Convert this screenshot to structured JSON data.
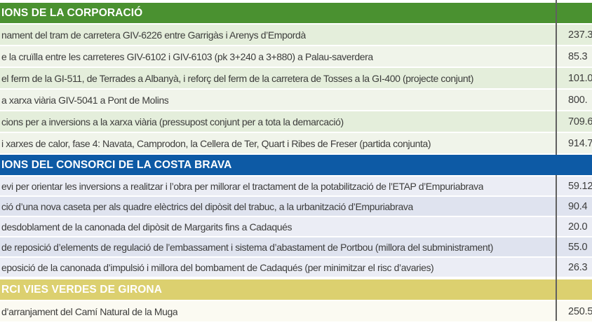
{
  "colors": {
    "green-header": "#4a9130",
    "blue-header": "#0d5aa5",
    "yellow-header": "#dcd06f",
    "row-green-a": "#e4eedb",
    "row-green-b": "#f0f4ea",
    "row-blue-a": "#ebedf5",
    "row-blue-b": "#dfe3ef",
    "row-cream": "#fbfaf2",
    "text": "#3d3d3c",
    "divider": "#606060"
  },
  "sections": [
    {
      "id": "corporacio",
      "header": "IONS DE LA CORPORACIÓ",
      "rows": [
        {
          "label": "nament del tram de carretera GIV-6226 entre Garrigàs i Arenys d’Empordà",
          "value": "237.3"
        },
        {
          "label": "e la cruïlla entre les carreteres GIV-6102 i GIV-6103 (pk 3+240 a 3+880) a Palau-saverdera",
          "value": "85.3"
        },
        {
          "label": "el ferm de la GI-511, de Terrades a Albanyà, i reforç del ferm de la carretera de Tosses a la GI-400 (projecte conjunt)",
          "value": "101.0"
        },
        {
          "label": "a xarxa viària GIV-5041 a Pont de Molins",
          "value": "800."
        },
        {
          "label": "cions per a inversions a la xarxa viària (pressupost conjunt per a tota la demarcació)",
          "value": "709.6"
        },
        {
          "label": "i xarxes de calor, fase 4: Navata, Camprodon, la Cellera de Ter, Quart i Ribes de Freser (partida conjunta)",
          "value": "914.7"
        }
      ]
    },
    {
      "id": "consorci-costa-brava",
      "header": "IONS DEL CONSORCI DE LA COSTA BRAVA",
      "rows": [
        {
          "label": "evi per orientar les inversions a realitzar i l’obra per millorar el tractament de la potabilització de l’ETAP d’Empuriabrava",
          "value": "59.12"
        },
        {
          "label": "ció d’una nova caseta per als quadre elèctrics del dipòsit del trabuc, a la urbanització d’Empuriabrava",
          "value": "90.4"
        },
        {
          "label": "desdoblament de la canonada del dipòsit de Margarits fins a Cadaqués",
          "value": "20.0"
        },
        {
          "label": "de reposició d’elements de regulació de l’embassament i sistema d’abastament de Portbou (millora del subministrament)",
          "value": "55.0"
        },
        {
          "label": "eposició de la canonada d’impulsió i millora del bombament de Cadaqués (per minimitzar el risc d’avaries)",
          "value": "26.3"
        }
      ]
    },
    {
      "id": "vies-verdes",
      "header": "RCI VIES VERDES DE GIRONA",
      "rows": [
        {
          "label": "d’arranjament del Camí Natural de la Muga",
          "value": "250.5"
        }
      ]
    }
  ]
}
